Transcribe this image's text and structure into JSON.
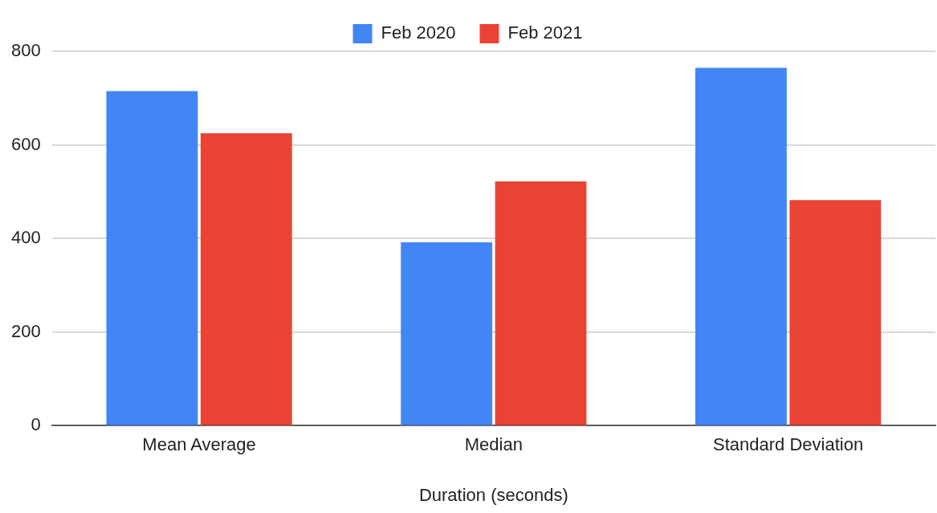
{
  "chart_data": {
    "type": "bar",
    "xlabel": "Duration (seconds)",
    "categories": [
      "Mean Average",
      "Median",
      "Standard Deviation"
    ],
    "series": [
      {
        "name": "Feb 2020",
        "color": "#4285f4",
        "values": [
          715,
          392,
          765
        ]
      },
      {
        "name": "Feb 2021",
        "color": "#ea4335",
        "values": [
          625,
          522,
          482
        ]
      }
    ],
    "ylim": [
      0,
      800
    ],
    "yticks": [
      0,
      200,
      400,
      600,
      800
    ],
    "grid": "y",
    "legend": "top"
  }
}
